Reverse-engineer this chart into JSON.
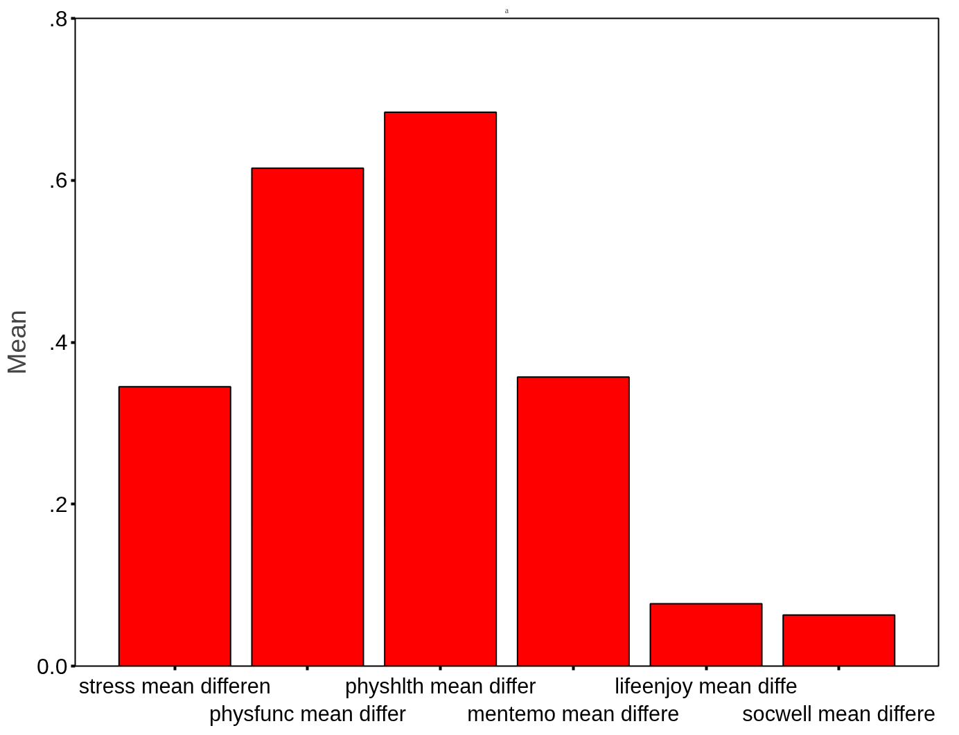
{
  "chart_data": {
    "type": "bar",
    "ylabel": "Mean",
    "categories": [
      "stress mean differen",
      "physfunc mean differ",
      "physhlth mean differ",
      "mentemo mean differe",
      "lifeenjoy mean diffe",
      "socwell mean differe"
    ],
    "values": [
      0.345,
      0.615,
      0.684,
      0.357,
      0.077,
      0.063
    ],
    "color": "#ff0000",
    "ylim": [
      0,
      0.8
    ],
    "yticks": [
      {
        "value": 0,
        "label": "0.0"
      },
      {
        "value": 0.2,
        "label": ".2"
      },
      {
        "value": 0.4,
        "label": ".4"
      },
      {
        "value": 0.6,
        "label": ".6"
      },
      {
        "value": 0.8,
        "label": ".8"
      }
    ],
    "grid": false,
    "annotations": [
      "a"
    ]
  }
}
